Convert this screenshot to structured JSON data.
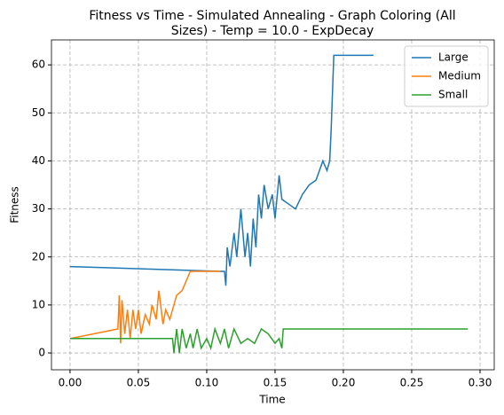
{
  "chart_data": {
    "type": "line",
    "title": [
      "Fitness vs Time - Simulated Annealing - Graph Coloring (All",
      "Sizes) - Temp = 10.0 - ExpDecay"
    ],
    "x_label": "Time",
    "y_label": "Fitness",
    "xlim": [
      -0.0136,
      0.3104
    ],
    "ylim": [
      -3.5,
      65.2
    ],
    "xticks": [
      {
        "value": 0,
        "label": "0.00"
      },
      {
        "value": 0.05,
        "label": "0.05"
      },
      {
        "value": 0.1,
        "label": "0.10"
      },
      {
        "value": 0.15,
        "label": "0.15"
      },
      {
        "value": 0.2,
        "label": "0.20"
      },
      {
        "value": 0.25,
        "label": "0.25"
      },
      {
        "value": 0.3,
        "label": "0.30"
      }
    ],
    "yticks": [
      0,
      10,
      20,
      30,
      40,
      50,
      60
    ],
    "grid": true,
    "legend": "upper right",
    "series": [
      {
        "name": "Large",
        "color": "#1f77b4",
        "x": [
          0,
          0.11,
          0.113,
          0.114,
          0.115,
          0.117,
          0.12,
          0.122,
          0.125,
          0.128,
          0.13,
          0.132,
          0.134,
          0.136,
          0.138,
          0.14,
          0.142,
          0.145,
          0.148,
          0.15,
          0.153,
          0.155,
          0.16,
          0.165,
          0.17,
          0.175,
          0.18,
          0.185,
          0.188,
          0.19,
          0.191,
          0.193,
          0.222
        ],
        "values": [
          18,
          17,
          17,
          14,
          22,
          18,
          25,
          20,
          30,
          20,
          25,
          18,
          28,
          22,
          33,
          28,
          35,
          30,
          33,
          28,
          37,
          32,
          31,
          30,
          33,
          35,
          36,
          40,
          38,
          40,
          46,
          62,
          62
        ]
      },
      {
        "name": "Medium",
        "color": "#ff7f0e",
        "x": [
          0,
          0.035,
          0.036,
          0.037,
          0.038,
          0.04,
          0.042,
          0.044,
          0.046,
          0.048,
          0.05,
          0.052,
          0.055,
          0.058,
          0.06,
          0.063,
          0.065,
          0.068,
          0.07,
          0.073,
          0.078,
          0.082,
          0.085,
          0.088,
          0.1,
          0.11
        ],
        "values": [
          3,
          5,
          12,
          2,
          11,
          4,
          9,
          3,
          9,
          5,
          9,
          4,
          8,
          6,
          10,
          7,
          13,
          6,
          9,
          7,
          12,
          13,
          15,
          17,
          17,
          17
        ]
      },
      {
        "name": "Small",
        "color": "#2ca02c",
        "x": [
          0,
          0.075,
          0.076,
          0.078,
          0.08,
          0.082,
          0.085,
          0.088,
          0.09,
          0.093,
          0.096,
          0.1,
          0.103,
          0.106,
          0.11,
          0.113,
          0.116,
          0.12,
          0.125,
          0.13,
          0.135,
          0.14,
          0.145,
          0.15,
          0.153,
          0.155,
          0.156,
          0.291
        ],
        "values": [
          3,
          3,
          0,
          5,
          0,
          5,
          1,
          4,
          1,
          5,
          1,
          3,
          1,
          5,
          2,
          5,
          1,
          5,
          2,
          3,
          2,
          5,
          4,
          2,
          3,
          1,
          5,
          5
        ]
      }
    ]
  }
}
